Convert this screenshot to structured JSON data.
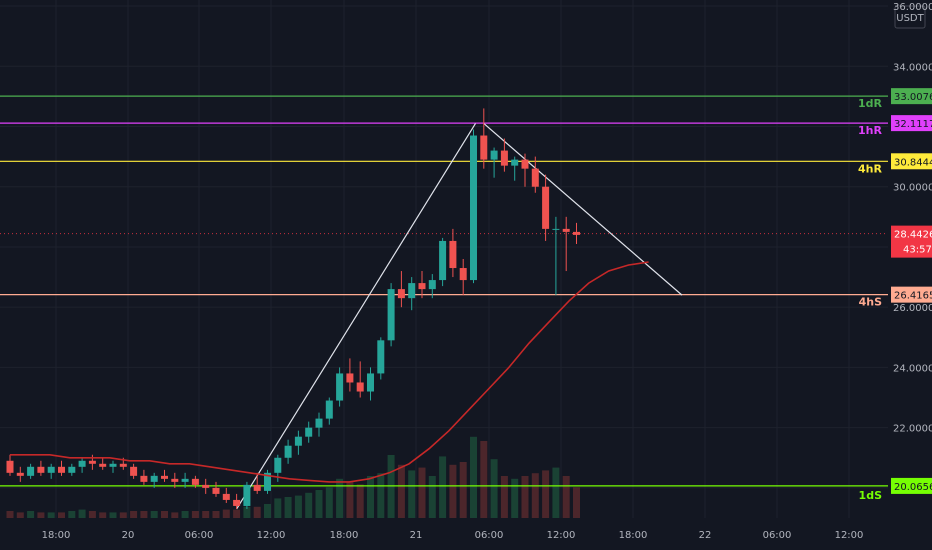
{
  "chart_data": {
    "type": "candlestick",
    "currency": "USDT",
    "y_axis": {
      "min": 19.0,
      "max": 36.2,
      "ticks": [
        20,
        22,
        24,
        26,
        28,
        30,
        32,
        34,
        36
      ],
      "tick_labels": [
        "",
        "22.0000",
        "24.0000",
        "26.0000",
        "30.0000",
        "34.0000",
        "36.0000"
      ]
    },
    "x_axis": {
      "tick_labels": [
        "18:00",
        "20",
        "06:00",
        "12:00",
        "18:00",
        "21",
        "06:00",
        "12:00",
        "18:00",
        "22",
        "06:00",
        "12:00"
      ]
    },
    "candles": [
      [
        20.9,
        21.1,
        20.4,
        20.5
      ],
      [
        20.5,
        20.7,
        20.2,
        20.4
      ],
      [
        20.4,
        20.8,
        20.3,
        20.7
      ],
      [
        20.7,
        20.9,
        20.4,
        20.5
      ],
      [
        20.5,
        20.8,
        20.3,
        20.7
      ],
      [
        20.7,
        20.9,
        20.4,
        20.5
      ],
      [
        20.5,
        20.8,
        20.4,
        20.7
      ],
      [
        20.7,
        21.0,
        20.5,
        20.9
      ],
      [
        20.9,
        21.1,
        20.6,
        20.8
      ],
      [
        20.8,
        21.0,
        20.6,
        20.7
      ],
      [
        20.7,
        20.9,
        20.5,
        20.8
      ],
      [
        20.8,
        21.0,
        20.6,
        20.7
      ],
      [
        20.7,
        20.8,
        20.3,
        20.4
      ],
      [
        20.4,
        20.6,
        20.1,
        20.2
      ],
      [
        20.2,
        20.5,
        20.0,
        20.4
      ],
      [
        20.4,
        20.6,
        20.2,
        20.3
      ],
      [
        20.3,
        20.5,
        20.0,
        20.2
      ],
      [
        20.2,
        20.5,
        20.0,
        20.3
      ],
      [
        20.3,
        20.4,
        20.0,
        20.1
      ],
      [
        20.1,
        20.3,
        19.8,
        20.0
      ],
      [
        20.0,
        20.2,
        19.7,
        19.8
      ],
      [
        19.8,
        20.0,
        19.5,
        19.6
      ],
      [
        19.6,
        19.8,
        19.3,
        19.4
      ],
      [
        19.4,
        20.2,
        19.3,
        20.1
      ],
      [
        20.1,
        20.5,
        19.8,
        19.9
      ],
      [
        19.9,
        20.6,
        19.8,
        20.5
      ],
      [
        20.5,
        21.1,
        20.2,
        21.0
      ],
      [
        21.0,
        21.6,
        20.8,
        21.4
      ],
      [
        21.4,
        21.9,
        21.1,
        21.7
      ],
      [
        21.7,
        22.2,
        21.5,
        22.0
      ],
      [
        22.0,
        22.5,
        21.7,
        22.3
      ],
      [
        22.3,
        23.0,
        22.1,
        22.9
      ],
      [
        22.9,
        24.0,
        22.7,
        23.8
      ],
      [
        23.8,
        24.3,
        23.2,
        23.5
      ],
      [
        23.5,
        24.2,
        23.0,
        23.2
      ],
      [
        23.2,
        24.0,
        22.9,
        23.8
      ],
      [
        23.8,
        25.0,
        23.6,
        24.9
      ],
      [
        24.9,
        26.8,
        24.7,
        26.6
      ],
      [
        26.6,
        27.2,
        26.0,
        26.3
      ],
      [
        26.3,
        27.0,
        25.9,
        26.8
      ],
      [
        26.8,
        27.2,
        26.3,
        26.6
      ],
      [
        26.6,
        27.1,
        26.3,
        26.9
      ],
      [
        26.9,
        28.3,
        26.7,
        28.2
      ],
      [
        28.2,
        28.6,
        27.0,
        27.3
      ],
      [
        27.3,
        27.6,
        26.4,
        26.9
      ],
      [
        26.9,
        31.9,
        26.8,
        31.7
      ],
      [
        31.7,
        32.6,
        30.6,
        30.9
      ],
      [
        30.9,
        31.3,
        30.3,
        31.2
      ],
      [
        31.2,
        31.6,
        30.5,
        30.7
      ],
      [
        30.7,
        31.0,
        30.2,
        30.9
      ],
      [
        30.9,
        31.1,
        30.0,
        30.6
      ],
      [
        30.6,
        31.0,
        29.8,
        30.0
      ],
      [
        30.0,
        30.4,
        28.2,
        28.6
      ],
      [
        28.6,
        29.0,
        26.4,
        28.6
      ],
      [
        28.6,
        29.0,
        27.2,
        28.5
      ],
      [
        28.5,
        28.8,
        28.1,
        28.4
      ]
    ],
    "ma_line": [
      21.1,
      21.1,
      21.1,
      21.0,
      21.0,
      21.0,
      20.9,
      20.9,
      20.8,
      20.8,
      20.7,
      20.6,
      20.5,
      20.4,
      20.3,
      20.25,
      20.2,
      20.2,
      20.3,
      20.5,
      20.8,
      21.3,
      21.9,
      22.6,
      23.3,
      24.0,
      24.8,
      25.5,
      26.2,
      26.8,
      27.2,
      27.4,
      27.5
    ],
    "volumes": [
      0.05,
      0.04,
      0.05,
      0.04,
      0.04,
      0.04,
      0.05,
      0.06,
      0.05,
      0.04,
      0.04,
      0.04,
      0.05,
      0.05,
      0.05,
      0.05,
      0.04,
      0.05,
      0.05,
      0.05,
      0.05,
      0.06,
      0.06,
      0.08,
      0.08,
      0.1,
      0.14,
      0.15,
      0.16,
      0.18,
      0.2,
      0.22,
      0.28,
      0.26,
      0.24,
      0.3,
      0.32,
      0.45,
      0.38,
      0.34,
      0.36,
      0.3,
      0.44,
      0.38,
      0.4,
      0.58,
      0.55,
      0.42,
      0.3,
      0.28,
      0.3,
      0.32,
      0.34,
      0.36,
      0.3,
      0.22
    ],
    "levels": [
      {
        "label": "1dR",
        "price_text": "33.0076",
        "value": 33.0076,
        "color": "#4caf50"
      },
      {
        "label": "1hR",
        "price_text": "32.1117",
        "value": 32.1117,
        "color": "#e040fb"
      },
      {
        "label": "4hR",
        "price_text": "30.8444",
        "value": 30.8444,
        "color": "#ffeb3b"
      },
      {
        "label": "4hS",
        "price_text": "26.4165",
        "value": 26.4165,
        "color": "#ffab91"
      },
      {
        "label": "1dS",
        "price_text": "20.0656",
        "value": 20.0656,
        "color": "#76ff03"
      }
    ],
    "current_price": {
      "text": "28.4426",
      "value": 28.4426,
      "countdown": "43:57",
      "color": "#f23645"
    },
    "colors": {
      "up": "#26a69a",
      "down": "#ef5350",
      "ma": "#c62828",
      "trendline": "#e0e3eb",
      "grid": "#1e222d"
    }
  }
}
